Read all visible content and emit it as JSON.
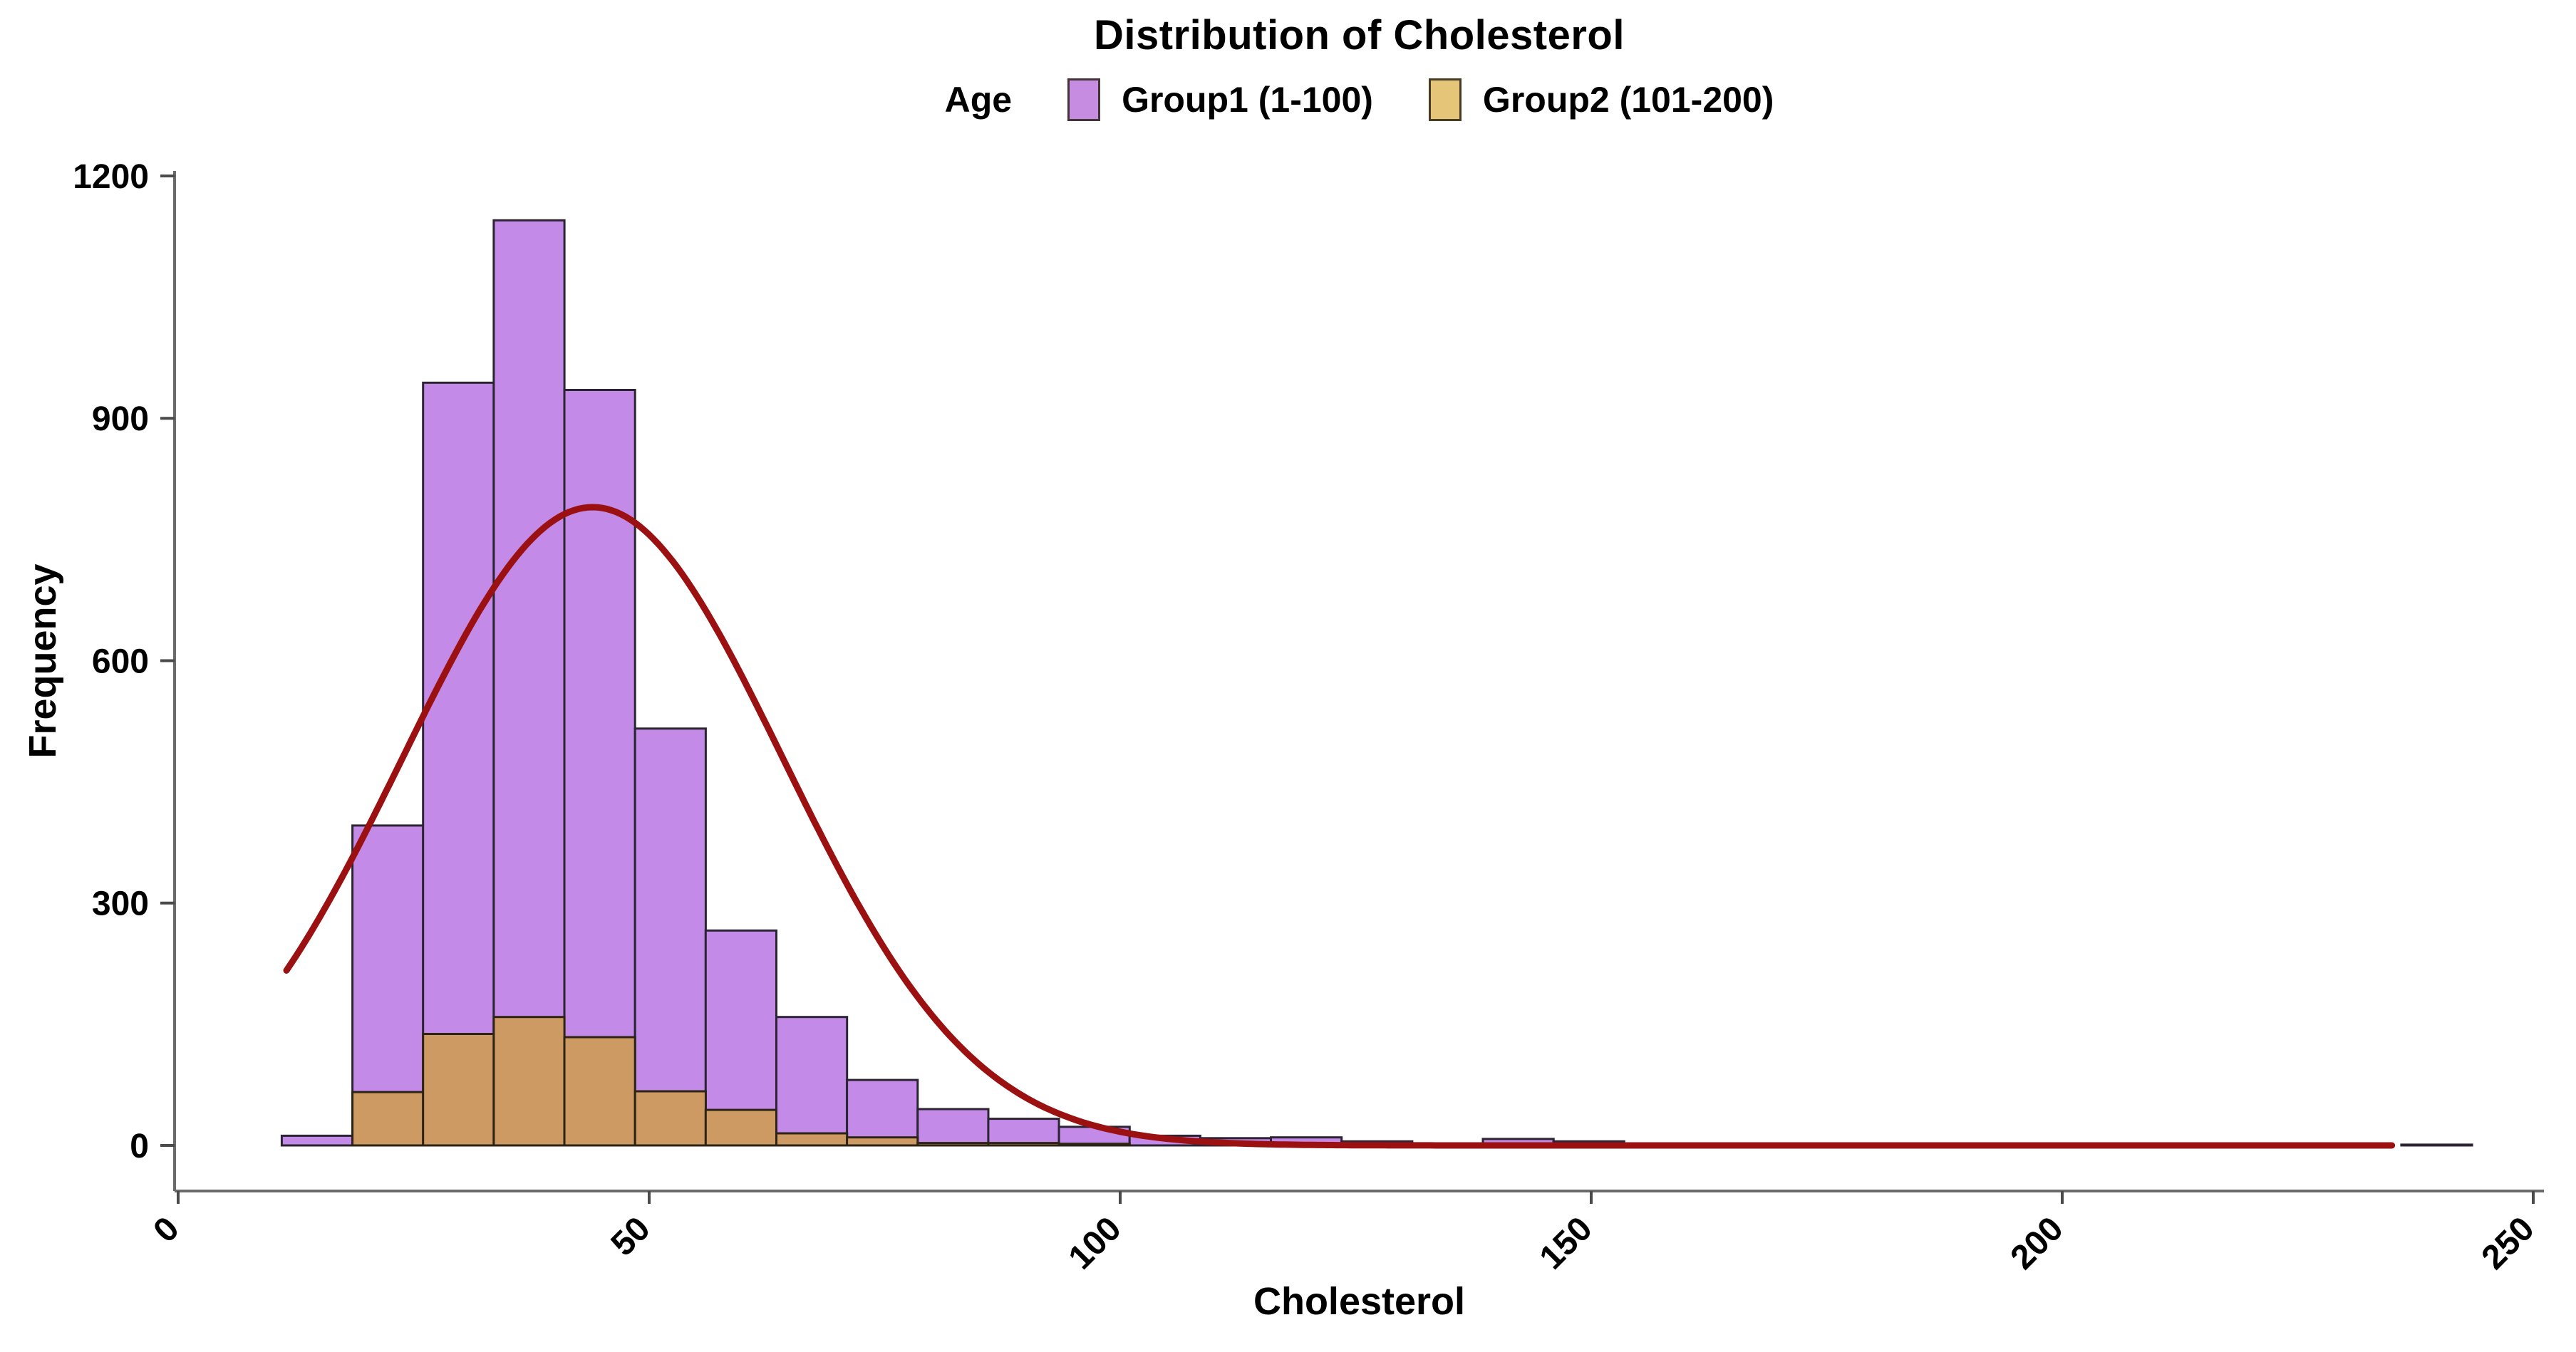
{
  "chart": {
    "title": "Distribution of Cholesterol",
    "legend": {
      "title": "Age",
      "items": [
        {
          "label": "Group1 (1-100)"
        },
        {
          "label": "Group2 (101-200)"
        }
      ]
    },
    "x_axis_title": "Cholesterol",
    "y_axis_title": "Frequency"
  },
  "chart_data": {
    "type": "bar",
    "subtype": "overlaid-histogram-with-density-curve",
    "title": "Distribution of Cholesterol",
    "xlabel": "Cholesterol",
    "ylabel": "Frequency",
    "xlim": [
      0,
      255
    ],
    "ylim": [
      0,
      1200
    ],
    "x_ticks": [
      0,
      50,
      100,
      150,
      200,
      250
    ],
    "y_ticks": [
      0,
      300,
      600,
      900,
      1200
    ],
    "grid": "off",
    "legend_position": "top-center",
    "bins": {
      "start": 11,
      "width": 7.5
    },
    "series": [
      {
        "name": "Group1 (1-100)",
        "fill": "#C38AE8",
        "stroke": "#2B2433",
        "legend_fill": "#C68CE2",
        "counts": [
          12,
          396,
          944,
          1145,
          935,
          516,
          266,
          159,
          81,
          45,
          33,
          23,
          12,
          9,
          10,
          5,
          0,
          8,
          5,
          0,
          2,
          0,
          0,
          2,
          0,
          0,
          0,
          0,
          0,
          0,
          1
        ]
      },
      {
        "name": "Group2 (101-200)",
        "fill": "#CE9A64",
        "stroke": "#2E2415",
        "legend_fill": "#E5C578",
        "counts": [
          0,
          66,
          138,
          159,
          134,
          67,
          44,
          15,
          10,
          3,
          3,
          2,
          0,
          0,
          0,
          0,
          0,
          0,
          0,
          0,
          0,
          0,
          0,
          0,
          0,
          0,
          0,
          0,
          0,
          0,
          0
        ]
      }
    ],
    "density_curve": {
      "shape": "normal",
      "mean": 44,
      "sd": 20.2,
      "peak": 790,
      "x_start": 11.5,
      "x_end": 235,
      "color": "#9B1010",
      "stroke_width": 9
    },
    "colors": {
      "axis": "#6A6A6A",
      "tick": "#4A4A4A",
      "text": "#000000",
      "background": "#FFFFFF"
    }
  }
}
